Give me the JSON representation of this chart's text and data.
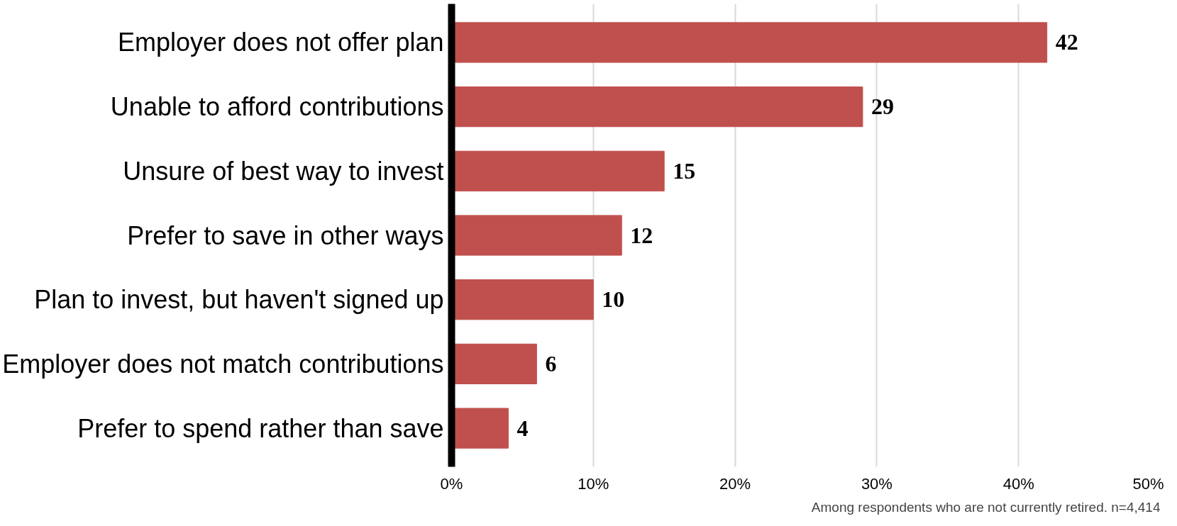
{
  "chart_data": {
    "type": "bar",
    "orientation": "horizontal",
    "categories": [
      "Employer does not offer plan",
      "Unable to afford contributions",
      "Unsure of best way to invest",
      "Prefer to save in other ways",
      "Plan to invest, but haven't signed up",
      "Employer does not match contributions",
      "Prefer to spend rather than save"
    ],
    "values": [
      42,
      29,
      15,
      12,
      10,
      6,
      4
    ],
    "color": "#c0504d",
    "data_labels": true,
    "xlim": [
      0,
      50
    ],
    "xticks": [
      {
        "value": 0,
        "label": "0%"
      },
      {
        "value": 10,
        "label": "10%"
      },
      {
        "value": 20,
        "label": "20%"
      },
      {
        "value": 30,
        "label": "30%"
      },
      {
        "value": 40,
        "label": "40%"
      },
      {
        "value": 50,
        "label": "50%"
      }
    ],
    "grid": "x",
    "annotations": [
      "Among respondents who are not currently retired. n=4,414"
    ]
  }
}
